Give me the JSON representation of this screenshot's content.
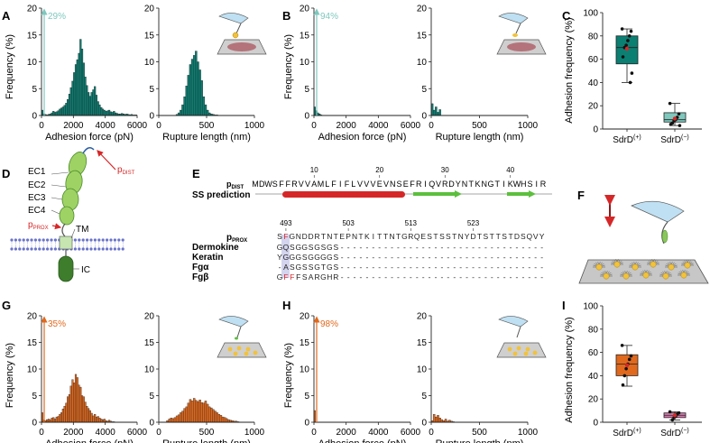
{
  "panel_letters": [
    "A",
    "B",
    "C",
    "D",
    "E",
    "F",
    "G",
    "H",
    "I"
  ],
  "colors": {
    "teal": "#0c7f73",
    "teal_light": "#7fc8be",
    "orange": "#e0691e",
    "pink": "#d978b0",
    "red": "#d62728",
    "green": "#5cbf3d",
    "axis": "#222222"
  },
  "common": {
    "ylabel_freq": "Frequency (%)",
    "xlabel_force": "Adhesion force (pN)",
    "xlabel_length": "Rupture length (nm)",
    "ylabel_adh": "Adhesion frequency (%)",
    "group_pos": "SdrD(+)",
    "group_neg": "SdrD(−)"
  },
  "chart_data": [
    {
      "id": "A-force",
      "type": "bar",
      "annotation": "29%",
      "xlim": [
        0,
        6000
      ],
      "ylim": [
        0,
        20
      ],
      "xticks": [
        0,
        2000,
        4000,
        6000
      ],
      "yticks": [
        0,
        5,
        10,
        15,
        20
      ],
      "bin": 100,
      "values": [
        1,
        0.3,
        0.2,
        0.1,
        0.2,
        0.3,
        0.5,
        0.8,
        0.6,
        0.7,
        0.9,
        1.2,
        1.4,
        1.6,
        1.9,
        2.3,
        3.0,
        4.0,
        5.2,
        6.4,
        8.0,
        9.5,
        10.4,
        11.6,
        14.2,
        12.4,
        9.8,
        7.2,
        5.6,
        4.3,
        3.6,
        4.3,
        4.8,
        5.4,
        3.8,
        2.6,
        2.0,
        1.5,
        1.2,
        1.0,
        0.8,
        0.9,
        1.0,
        0.7,
        0.6,
        0.8,
        0.5,
        0.4,
        0.3,
        0.3,
        0.4,
        0.3,
        0.2,
        0.3,
        0.2,
        0.1,
        0.2,
        0.1,
        0.1,
        0.1
      ]
    },
    {
      "id": "A-length",
      "type": "bar",
      "xlim": [
        0,
        1000
      ],
      "ylim": [
        0,
        20
      ],
      "xticks": [
        0,
        500,
        1000
      ],
      "yticks": [
        0,
        5,
        10,
        15,
        20
      ],
      "bin": 20,
      "values": [
        0,
        0,
        0,
        0,
        0,
        0,
        0,
        0,
        0,
        0.2,
        0.5,
        1.0,
        2.0,
        3.5,
        5.5,
        7.5,
        9.5,
        10.5,
        11.2,
        12.0,
        10.0,
        8.5,
        6.5,
        3.5,
        2.0,
        1.0,
        0.5,
        0.3,
        0.2,
        0.1,
        0.1,
        0,
        0,
        0,
        0,
        0,
        0,
        0,
        0,
        0,
        0,
        0,
        0,
        0,
        0,
        0,
        0,
        0,
        0,
        0
      ]
    },
    {
      "id": "B-force",
      "type": "bar",
      "annotation": "94%",
      "xlim": [
        0,
        6000
      ],
      "ylim": [
        0,
        20
      ],
      "xticks": [
        0,
        2000,
        4000,
        6000
      ],
      "yticks": [
        0,
        5,
        10,
        15,
        20
      ],
      "bin": 100,
      "values": [
        1.6,
        0.9,
        0.5,
        0.3,
        0.1,
        0,
        0,
        0,
        0,
        0,
        0,
        0,
        0,
        0,
        0,
        0,
        0,
        0,
        0,
        0,
        0,
        0,
        0,
        0,
        0,
        0,
        0,
        0,
        0,
        0,
        0,
        0,
        0,
        0,
        0,
        0,
        0,
        0,
        0,
        0,
        0,
        0,
        0,
        0,
        0,
        0,
        0,
        0,
        0,
        0,
        0,
        0,
        0,
        0,
        0,
        0,
        0,
        0,
        0,
        0
      ]
    },
    {
      "id": "B-length",
      "type": "bar",
      "xlim": [
        0,
        1000
      ],
      "ylim": [
        0,
        20
      ],
      "xticks": [
        0,
        500,
        1000
      ],
      "yticks": [
        0,
        5,
        10,
        15,
        20
      ],
      "bin": 20,
      "values": [
        2.2,
        1.0,
        1.6,
        0.6,
        1.1,
        0,
        0,
        0,
        0,
        0,
        0,
        0,
        0,
        0,
        0,
        0,
        0,
        0,
        0,
        0,
        0,
        0,
        0,
        0,
        0,
        0,
        0,
        0,
        0,
        0,
        0,
        0,
        0,
        0,
        0,
        0,
        0,
        0,
        0,
        0,
        0,
        0,
        0,
        0,
        0,
        0,
        0,
        0,
        0,
        0
      ]
    },
    {
      "id": "C",
      "type": "box",
      "ylim": [
        0,
        100
      ],
      "yticks": [
        0,
        20,
        40,
        60,
        80,
        100
      ],
      "groups": [
        {
          "name": "SdrD(+)",
          "q1": 56,
          "median": 70,
          "q3": 80,
          "whisker_low": 40,
          "whisker_high": 86,
          "mean": 69,
          "points": [
            86,
            84,
            80,
            76,
            72,
            70,
            62,
            48,
            40
          ]
        },
        {
          "name": "SdrD(−)",
          "q1": 6,
          "median": 8,
          "q3": 14,
          "whisker_low": 3,
          "whisker_high": 22,
          "mean": 9,
          "points": [
            22,
            13,
            10,
            8,
            7,
            5,
            4,
            3
          ]
        }
      ]
    },
    {
      "id": "G-force",
      "type": "bar",
      "annotation": "35%",
      "xlim": [
        0,
        6000
      ],
      "ylim": [
        0,
        20
      ],
      "xticks": [
        0,
        2000,
        4000,
        6000
      ],
      "yticks": [
        0,
        5,
        10,
        15,
        20
      ],
      "bin": 100,
      "values": [
        1.8,
        0.4,
        0.3,
        0.5,
        0.6,
        0.5,
        0.8,
        0.9,
        0.6,
        1.0,
        1.1,
        1.5,
        1.8,
        2.5,
        3.0,
        3.6,
        4.8,
        5.2,
        6.8,
        8.0,
        7.4,
        9.0,
        8.4,
        7.0,
        6.6,
        5.0,
        4.8,
        3.8,
        3.0,
        2.6,
        2.2,
        1.7,
        1.2,
        1.5,
        1.0,
        1.1,
        0.8,
        0.6,
        0.5,
        0.6,
        0.3,
        0.2,
        0.4,
        0.2,
        0.1,
        0.1,
        0,
        0,
        0,
        0,
        0,
        0,
        0,
        0,
        0,
        0,
        0,
        0,
        0,
        0
      ]
    },
    {
      "id": "G-length",
      "type": "bar",
      "xlim": [
        0,
        1000
      ],
      "ylim": [
        0,
        20
      ],
      "xticks": [
        0,
        500,
        1000
      ],
      "yticks": [
        0,
        5,
        10,
        15,
        20
      ],
      "bin": 20,
      "values": [
        0,
        0,
        0,
        0,
        0.3,
        0.6,
        0.8,
        0.7,
        0.9,
        1.2,
        1.4,
        1.8,
        2.1,
        2.6,
        2.9,
        3.6,
        4.3,
        4.0,
        4.5,
        4.1,
        3.9,
        4.2,
        3.7,
        3.6,
        4.0,
        3.4,
        2.9,
        2.7,
        2.4,
        2.1,
        1.8,
        1.5,
        1.3,
        1.0,
        0.9,
        0.7,
        0.5,
        0.4,
        0.3,
        0.2,
        0.2,
        0.1,
        0,
        0,
        0,
        0,
        0,
        0,
        0,
        0
      ]
    },
    {
      "id": "H-force",
      "type": "bar",
      "annotation": "98%",
      "xlim": [
        0,
        6000
      ],
      "ylim": [
        0,
        20
      ],
      "xticks": [
        0,
        2000,
        4000,
        6000
      ],
      "yticks": [
        0,
        5,
        10,
        15,
        20
      ],
      "bin": 100,
      "values": [
        2.2,
        0,
        0,
        0,
        0,
        0,
        0,
        0,
        0,
        0,
        0,
        0,
        0,
        0,
        0,
        0,
        0,
        0,
        0,
        0,
        0,
        0,
        0,
        0,
        0,
        0,
        0,
        0,
        0,
        0,
        0,
        0,
        0,
        0,
        0,
        0,
        0,
        0,
        0,
        0,
        0,
        0,
        0,
        0,
        0,
        0,
        0,
        0,
        0,
        0,
        0,
        0,
        0,
        0,
        0,
        0,
        0,
        0,
        0,
        0
      ]
    },
    {
      "id": "H-length",
      "type": "bar",
      "xlim": [
        0,
        1000
      ],
      "ylim": [
        0,
        20
      ],
      "xticks": [
        0,
        500,
        1000
      ],
      "yticks": [
        0,
        5,
        10,
        15,
        20
      ],
      "bin": 20,
      "values": [
        0.3,
        1.5,
        1.0,
        1.3,
        0.8,
        0.5,
        0.3,
        0.6,
        0.2,
        0.4,
        0.2,
        0.1,
        0,
        0,
        0,
        0,
        0,
        0,
        0,
        0,
        0,
        0,
        0,
        0,
        0,
        0,
        0,
        0,
        0,
        0,
        0,
        0,
        0,
        0,
        0,
        0,
        0,
        0,
        0,
        0,
        0,
        0,
        0,
        0,
        0,
        0,
        0,
        0,
        0,
        0
      ]
    },
    {
      "id": "I",
      "type": "box",
      "ylim": [
        0,
        100
      ],
      "yticks": [
        0,
        20,
        40,
        60,
        80,
        100
      ],
      "groups": [
        {
          "name": "SdrD(+)",
          "q1": 40,
          "median": 50,
          "q3": 58,
          "whisker_low": 31,
          "whisker_high": 66,
          "mean": 49,
          "points": [
            66,
            57,
            54,
            50,
            46,
            40,
            32
          ]
        },
        {
          "name": "SdrD(−)",
          "q1": 4,
          "median": 6,
          "q3": 8,
          "whisker_low": 2,
          "whisker_high": 9,
          "mean": 6,
          "points": [
            9,
            8,
            7,
            5,
            4,
            2
          ]
        }
      ]
    }
  ],
  "panel_d": {
    "labels": [
      "EC1",
      "EC2",
      "EC3",
      "EC4",
      "TM",
      "IC"
    ],
    "p_dist": "DIST",
    "p_prox": "PROX",
    "p_letter": "p"
  },
  "panel_e": {
    "pdist_label": "DIST",
    "p_letter": "p",
    "ss_label": "SS prediction",
    "top_numbers": [
      "10",
      "20",
      "30",
      "40"
    ],
    "top_seq": "MDWSFFRVVAMLFIFLVVVEVNSEFRIQVRDYNTKNGTIKWHSIR",
    "pprox_label": "PROX",
    "bottom_numbers": [
      "493",
      "503",
      "513",
      "523"
    ],
    "pprox_seq": "SFGNDDRTNTEPNTKITTNTGRQESTSSTNYDTSTTSTDSQVY",
    "rows": [
      {
        "name": "Dermokine",
        "seq": "GQSGGSGSGS---------------------------------"
      },
      {
        "name": "Keratin",
        "seq": "YGGGSGGGGS---------------------------------"
      },
      {
        "name": "Fgα",
        "seq": "-ASGSSGTGS---------------------------------"
      },
      {
        "name": "Fgβ",
        "seq": "GFFFSARGHR---------------------------------"
      }
    ]
  }
}
